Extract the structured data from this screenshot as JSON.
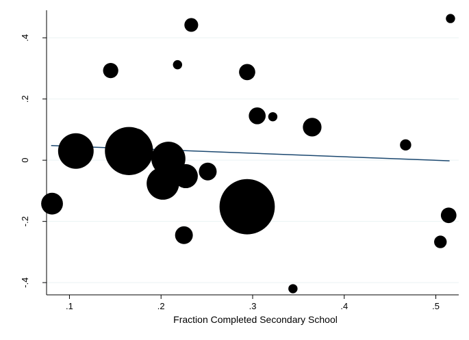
{
  "chart_data": {
    "type": "scatter",
    "title": "",
    "xlabel": "Fraction Completed Secondary School",
    "ylabel": "",
    "xlim": [
      0.075,
      0.525
    ],
    "ylim": [
      -0.44,
      0.49
    ],
    "x_ticks": [
      {
        "value": 0.1,
        "label": ".1"
      },
      {
        "value": 0.2,
        "label": ".2"
      },
      {
        "value": 0.3,
        "label": ".3"
      },
      {
        "value": 0.4,
        "label": ".4"
      },
      {
        "value": 0.5,
        "label": ".5"
      }
    ],
    "y_ticks": [
      {
        "value": -0.4,
        "label": "-.4"
      },
      {
        "value": -0.2,
        "label": "-.2"
      },
      {
        "value": 0,
        "label": "0"
      },
      {
        "value": 0.2,
        "label": ".2"
      },
      {
        "value": 0.4,
        "label": ".4"
      }
    ],
    "grid": "horizontal",
    "marker_color": "#000000",
    "fit_line_color": "#1a476f",
    "note": "weighted scatter; marker size proportional to weight",
    "points": [
      {
        "x": 0.081,
        "y": -0.142,
        "w": 4.5
      },
      {
        "x": 0.107,
        "y": 0.03,
        "w": 12
      },
      {
        "x": 0.145,
        "y": 0.293,
        "w": 2.2
      },
      {
        "x": 0.165,
        "y": 0.03,
        "w": 22
      },
      {
        "x": 0.173,
        "y": 0.072,
        "w": 3.5
      },
      {
        "x": 0.202,
        "y": -0.076,
        "w": 10
      },
      {
        "x": 0.208,
        "y": 0.005,
        "w": 11
      },
      {
        "x": 0.218,
        "y": 0.312,
        "w": 0.8
      },
      {
        "x": 0.225,
        "y": -0.245,
        "w": 3
      },
      {
        "x": 0.227,
        "y": -0.052,
        "w": 5.5
      },
      {
        "x": 0.233,
        "y": 0.442,
        "w": 1.8
      },
      {
        "x": 0.251,
        "y": -0.037,
        "w": 3
      },
      {
        "x": 0.294,
        "y": 0.288,
        "w": 2.5
      },
      {
        "x": 0.294,
        "y": -0.152,
        "w": 29
      },
      {
        "x": 0.305,
        "y": 0.145,
        "w": 2.7
      },
      {
        "x": 0.322,
        "y": 0.142,
        "w": 0.8
      },
      {
        "x": 0.344,
        "y": -0.42,
        "w": 0.8
      },
      {
        "x": 0.365,
        "y": 0.108,
        "w": 3.3
      },
      {
        "x": 0.467,
        "y": 0.05,
        "w": 1.2
      },
      {
        "x": 0.505,
        "y": -0.267,
        "w": 1.5
      },
      {
        "x": 0.514,
        "y": -0.18,
        "w": 2.3
      },
      {
        "x": 0.516,
        "y": 0.463,
        "w": 0.8
      }
    ],
    "fit_line": {
      "x": [
        0.08,
        0.515
      ],
      "y": [
        0.048,
        -0.002
      ]
    }
  }
}
